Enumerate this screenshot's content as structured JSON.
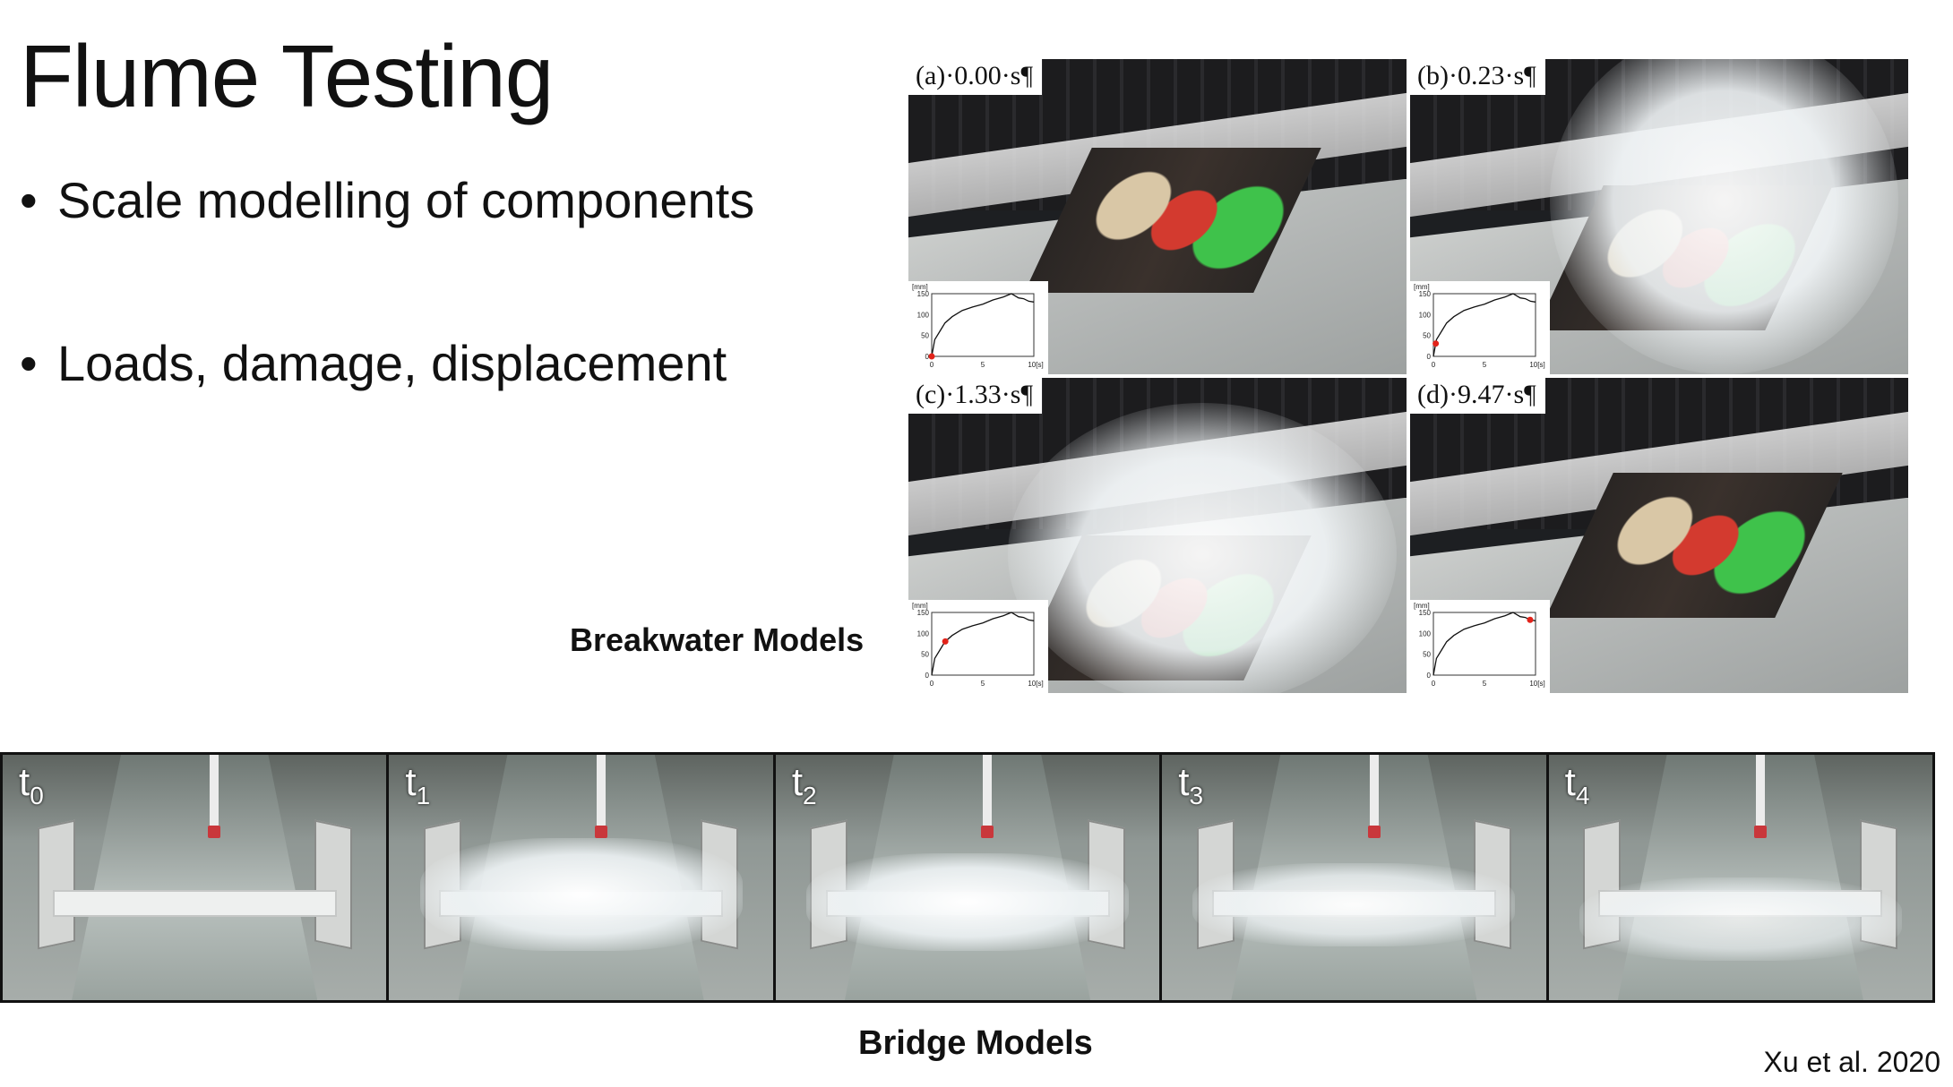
{
  "slide": {
    "title": "Flume Testing",
    "bullets": [
      "Scale modelling of components",
      "Loads, damage, displacement"
    ]
  },
  "breakwater": {
    "caption": "Breakwater Models",
    "panels": [
      {
        "label": "(a)·0.00·s¶",
        "marker_x": 0.0
      },
      {
        "label": "(b)·0.23·s¶",
        "marker_x": 0.23
      },
      {
        "label": "(c)·1.33·s¶",
        "marker_x": 1.33
      },
      {
        "label": "(d)·9.47·s¶",
        "marker_x": 9.47
      }
    ],
    "inset": {
      "unit_y": "[mm]",
      "unit_x": "10[s]",
      "y_ticks": [
        "150",
        "100",
        "50",
        "0"
      ],
      "x_ticks": [
        "0",
        "5"
      ],
      "curve": [
        [
          0,
          0
        ],
        [
          0.3,
          40
        ],
        [
          0.8,
          60
        ],
        [
          1.3,
          80
        ],
        [
          2,
          95
        ],
        [
          3,
          110
        ],
        [
          4,
          118
        ],
        [
          5,
          125
        ],
        [
          6,
          135
        ],
        [
          7,
          142
        ],
        [
          7.8,
          150
        ],
        [
          8.5,
          140
        ],
        [
          9,
          138
        ],
        [
          9.5,
          132
        ],
        [
          10,
          130
        ]
      ]
    }
  },
  "bridge": {
    "caption": "Bridge Models",
    "frames": [
      {
        "label": "t",
        "sub": "0"
      },
      {
        "label": "t",
        "sub": "1"
      },
      {
        "label": "t",
        "sub": "2"
      },
      {
        "label": "t",
        "sub": "3"
      },
      {
        "label": "t",
        "sub": "4"
      }
    ]
  },
  "citation": "Xu et al. 2020",
  "colors": {
    "marker": "#e2231a",
    "text": "#111111"
  }
}
